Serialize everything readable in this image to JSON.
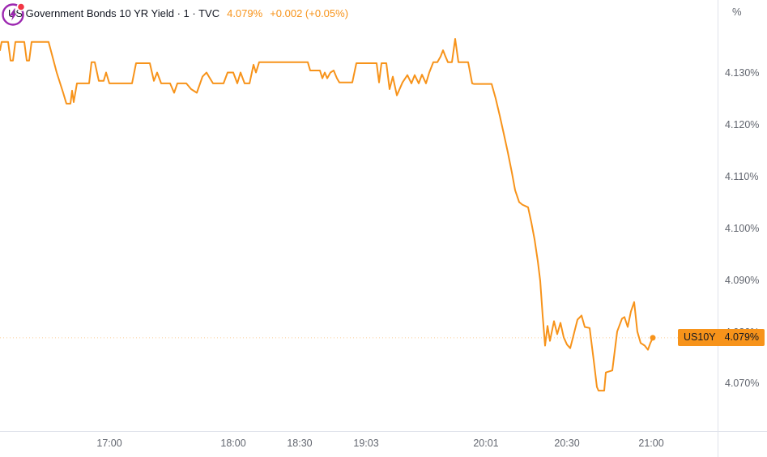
{
  "header": {
    "symbol_title": "US Government Bonds 10 YR Yield · 1 · TVC",
    "last_price": "4.079%",
    "change": "+0.002 (+0.05%)"
  },
  "price_label": {
    "symbol": "US10Y",
    "value": "4.079%"
  },
  "axes": {
    "unit_label": "%"
  },
  "icons": {
    "market_status": "lightning-bolt-in-circle-with-red-notification-dot"
  },
  "colors": {
    "line": "#f7931a",
    "badge_bg": "#f7931a",
    "badge_text": "#131722",
    "title_text": "#131722",
    "axis_text": "#62666f",
    "axis_border": "#e0e3eb",
    "status_icon_purple": "#9c27b0",
    "status_icon_red": "#f23645",
    "background": "#ffffff"
  },
  "chart_data": {
    "type": "line",
    "title": "US Government Bonds 10 YR Yield",
    "symbol": "US10Y",
    "exchange": "TVC",
    "interval": "1",
    "unit": "%",
    "current_price": 4.079,
    "current_price_label": "4.079%",
    "session_low": 4.069,
    "session_high": 4.137,
    "ylim": [
      4.061,
      4.1442
    ],
    "grid": "off",
    "legend_position": "top-left",
    "yticks": [
      {
        "value": 4.13,
        "label": "4.130%"
      },
      {
        "value": 4.12,
        "label": "4.120%"
      },
      {
        "value": 4.11,
        "label": "4.110%"
      },
      {
        "value": 4.1,
        "label": "4.100%"
      },
      {
        "value": 4.09,
        "label": "4.090%"
      },
      {
        "value": 4.08,
        "label": "4.080%"
      },
      {
        "value": 4.07,
        "label": "4.070%"
      }
    ],
    "xticks": [
      {
        "pos": 0.1524,
        "label": "17:00"
      },
      {
        "pos": 0.3251,
        "label": "18:00"
      },
      {
        "pos": 0.4176,
        "label": "18:30"
      },
      {
        "pos": 0.5102,
        "label": "19:03"
      },
      {
        "pos": 0.6772,
        "label": "20:01"
      },
      {
        "pos": 0.7901,
        "label": "20:30"
      },
      {
        "pos": 0.9075,
        "label": "21:00"
      }
    ],
    "series": [
      {
        "name": "US10Y yield",
        "color": "#f7931a",
        "points": [
          [
            0.0,
            4.1345
          ],
          [
            0.0023,
            4.1361
          ],
          [
            0.0113,
            4.1361
          ],
          [
            0.0147,
            4.1325
          ],
          [
            0.0181,
            4.1325
          ],
          [
            0.0214,
            4.1361
          ],
          [
            0.0339,
            4.1361
          ],
          [
            0.0373,
            4.1325
          ],
          [
            0.0406,
            4.1325
          ],
          [
            0.044,
            4.1361
          ],
          [
            0.0677,
            4.1361
          ],
          [
            0.079,
            4.1302
          ],
          [
            0.088,
            4.1263
          ],
          [
            0.0926,
            4.1242
          ],
          [
            0.0982,
            4.1242
          ],
          [
            0.1005,
            4.1267
          ],
          [
            0.1027,
            4.1245
          ],
          [
            0.1072,
            4.1281
          ],
          [
            0.1242,
            4.1281
          ],
          [
            0.1275,
            4.1322
          ],
          [
            0.1321,
            4.1322
          ],
          [
            0.1377,
            4.1286
          ],
          [
            0.1445,
            4.1286
          ],
          [
            0.1479,
            4.1302
          ],
          [
            0.1524,
            4.1281
          ],
          [
            0.184,
            4.1281
          ],
          [
            0.1896,
            4.132
          ],
          [
            0.2088,
            4.132
          ],
          [
            0.2144,
            4.1286
          ],
          [
            0.219,
            4.1302
          ],
          [
            0.2246,
            4.1281
          ],
          [
            0.237,
            4.1281
          ],
          [
            0.2427,
            4.1263
          ],
          [
            0.2472,
            4.1281
          ],
          [
            0.2596,
            4.1281
          ],
          [
            0.2664,
            4.127
          ],
          [
            0.2743,
            4.1263
          ],
          [
            0.2822,
            4.1294
          ],
          [
            0.2878,
            4.1302
          ],
          [
            0.2912,
            4.1294
          ],
          [
            0.2968,
            4.1281
          ],
          [
            0.3115,
            4.1281
          ],
          [
            0.3172,
            4.1302
          ],
          [
            0.3251,
            4.1302
          ],
          [
            0.3307,
            4.1281
          ],
          [
            0.3352,
            4.1302
          ],
          [
            0.3409,
            4.1281
          ],
          [
            0.3477,
            4.1281
          ],
          [
            0.3533,
            4.1317
          ],
          [
            0.3567,
            4.1302
          ],
          [
            0.3612,
            4.1322
          ],
          [
            0.3668,
            4.1322
          ],
          [
            0.4289,
            4.1322
          ],
          [
            0.4323,
            4.1306
          ],
          [
            0.4458,
            4.1306
          ],
          [
            0.4492,
            4.1291
          ],
          [
            0.4526,
            4.1302
          ],
          [
            0.456,
            4.1291
          ],
          [
            0.4605,
            4.1302
          ],
          [
            0.465,
            4.1306
          ],
          [
            0.4695,
            4.1291
          ],
          [
            0.4729,
            4.1283
          ],
          [
            0.491,
            4.1283
          ],
          [
            0.4966,
            4.132
          ],
          [
            0.5248,
            4.132
          ],
          [
            0.5282,
            4.1283
          ],
          [
            0.5316,
            4.132
          ],
          [
            0.5384,
            4.132
          ],
          [
            0.5429,
            4.127
          ],
          [
            0.5474,
            4.1294
          ],
          [
            0.5531,
            4.1258
          ],
          [
            0.561,
            4.1283
          ],
          [
            0.5677,
            4.1297
          ],
          [
            0.5734,
            4.1281
          ],
          [
            0.5779,
            4.1297
          ],
          [
            0.5835,
            4.1281
          ],
          [
            0.588,
            4.1298
          ],
          [
            0.5937,
            4.1281
          ],
          [
            0.5982,
            4.1302
          ],
          [
            0.6038,
            4.1322
          ],
          [
            0.6095,
            4.1322
          ],
          [
            0.614,
            4.1333
          ],
          [
            0.6174,
            4.1345
          ],
          [
            0.6208,
            4.1333
          ],
          [
            0.6242,
            4.1322
          ],
          [
            0.6298,
            4.1322
          ],
          [
            0.6343,
            4.1367
          ],
          [
            0.6388,
            4.1322
          ],
          [
            0.6524,
            4.1322
          ],
          [
            0.658,
            4.1281
          ],
          [
            0.6603,
            4.128
          ],
          [
            0.6851,
            4.128
          ],
          [
            0.6908,
            4.1252
          ],
          [
            0.6964,
            4.1219
          ],
          [
            0.702,
            4.1184
          ],
          [
            0.7077,
            4.1148
          ],
          [
            0.7133,
            4.1109
          ],
          [
            0.7178,
            4.1075
          ],
          [
            0.7235,
            4.1052
          ],
          [
            0.728,
            4.1047
          ],
          [
            0.7359,
            4.1042
          ],
          [
            0.7404,
            4.1013
          ],
          [
            0.7449,
            4.098
          ],
          [
            0.7494,
            4.0938
          ],
          [
            0.7528,
            4.09
          ],
          [
            0.7562,
            4.0833
          ],
          [
            0.7596,
            4.0775
          ],
          [
            0.763,
            4.0813
          ],
          [
            0.7664,
            4.0784
          ],
          [
            0.772,
            4.0822
          ],
          [
            0.7765,
            4.0797
          ],
          [
            0.781,
            4.0819
          ],
          [
            0.7856,
            4.0791
          ],
          [
            0.7901,
            4.0777
          ],
          [
            0.7946,
            4.077
          ],
          [
            0.7991,
            4.0794
          ],
          [
            0.8047,
            4.0825
          ],
          [
            0.8104,
            4.0833
          ],
          [
            0.8149,
            4.0811
          ],
          [
            0.8217,
            4.0809
          ],
          [
            0.8273,
            4.0747
          ],
          [
            0.8318,
            4.0695
          ],
          [
            0.8341,
            4.0688
          ],
          [
            0.842,
            4.0688
          ],
          [
            0.8442,
            4.0723
          ],
          [
            0.8533,
            4.0727
          ],
          [
            0.86,
            4.0802
          ],
          [
            0.8668,
            4.0827
          ],
          [
            0.8702,
            4.083
          ],
          [
            0.8747,
            4.0811
          ],
          [
            0.8792,
            4.0841
          ],
          [
            0.8837,
            4.0859
          ],
          [
            0.8882,
            4.0802
          ],
          [
            0.8928,
            4.078
          ],
          [
            0.8984,
            4.0775
          ],
          [
            0.9029,
            4.0767
          ],
          [
            0.9063,
            4.078
          ],
          [
            0.9097,
            4.079
          ]
        ]
      }
    ]
  }
}
